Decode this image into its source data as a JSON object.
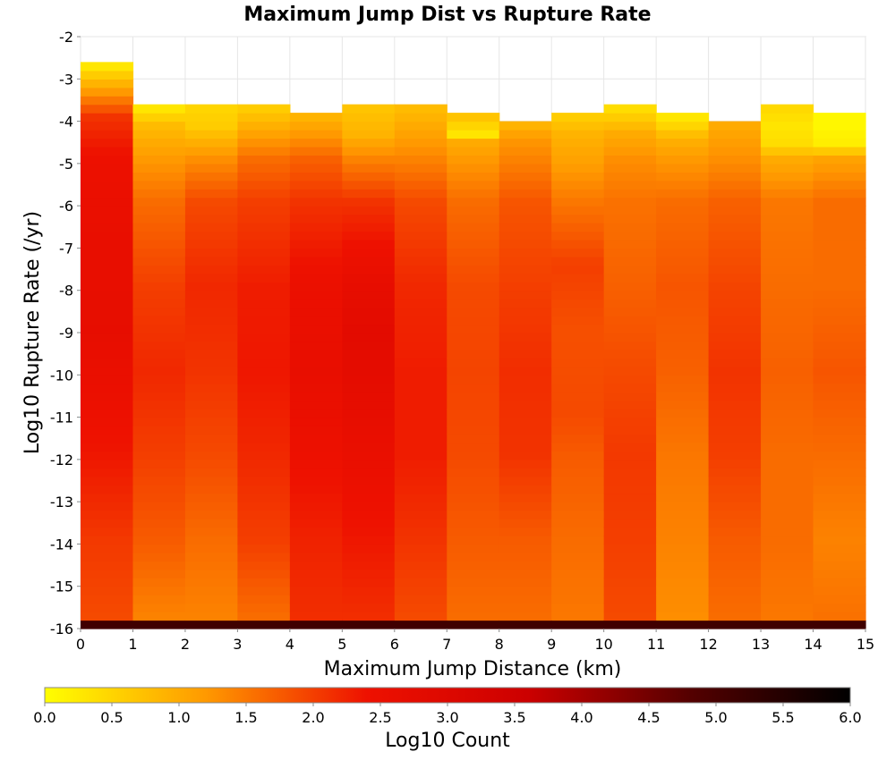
{
  "chart_data": {
    "type": "heatmap",
    "title": "Maximum Jump Dist vs Rupture Rate",
    "xlabel": "Maximum Jump Distance (km)",
    "ylabel": "Log10 Rupture Rate (/yr)",
    "xlim": [
      0,
      15
    ],
    "ylim": [
      -16,
      -2
    ],
    "xticks": [
      0,
      1,
      2,
      3,
      4,
      5,
      6,
      7,
      8,
      9,
      10,
      11,
      12,
      13,
      14,
      15
    ],
    "yticks": [
      -2,
      -3,
      -4,
      -5,
      -6,
      -7,
      -8,
      -9,
      -10,
      -11,
      -12,
      -13,
      -14,
      -15,
      -16
    ],
    "x_bin_width": 1,
    "y_bin_width": 0.2,
    "y_bin_start": -16,
    "colorbar": {
      "label": "Log10 Count",
      "range": [
        0,
        6
      ],
      "ticks": [
        "0.0",
        "0.5",
        "1.0",
        "1.5",
        "2.0",
        "2.5",
        "3.0",
        "3.5",
        "4.0",
        "4.5",
        "5.0",
        "5.5",
        "6.0"
      ],
      "colors": [
        "#ffff00",
        "#ff9900",
        "#ee1100",
        "#cc0000",
        "#550000",
        "#000000"
      ]
    },
    "columns": [
      {
        "x": 0,
        "top": -2.7,
        "anchors": [
          [
            -16,
            5.1
          ],
          [
            -15.8,
            1.9
          ],
          [
            -14,
            2.05
          ],
          [
            -12,
            2.35
          ],
          [
            -10,
            2.55
          ],
          [
            -9,
            2.65
          ],
          [
            -7,
            2.6
          ],
          [
            -5,
            2.45
          ],
          [
            -4,
            2.1
          ],
          [
            -3.4,
            1.2
          ],
          [
            -3,
            0.6
          ],
          [
            -2.8,
            0.3
          ]
        ]
      },
      {
        "x": 1,
        "top": -3.6,
        "anchors": [
          [
            -16,
            5.1
          ],
          [
            -15.8,
            1.4
          ],
          [
            -14,
            1.75
          ],
          [
            -12,
            2.0
          ],
          [
            -10,
            2.2
          ],
          [
            -8,
            2.0
          ],
          [
            -6,
            1.6
          ],
          [
            -5,
            1.2
          ],
          [
            -4.2,
            0.8
          ],
          [
            -3.8,
            0.3
          ]
        ]
      },
      {
        "x": 2,
        "top": -3.6,
        "anchors": [
          [
            -16,
            5.1
          ],
          [
            -15.8,
            1.4
          ],
          [
            -14,
            1.6
          ],
          [
            -12,
            1.9
          ],
          [
            -10,
            2.1
          ],
          [
            -8,
            2.2
          ],
          [
            -6,
            1.9
          ],
          [
            -5,
            1.3
          ],
          [
            -4.2,
            0.6
          ],
          [
            -3.8,
            0.5
          ]
        ]
      },
      {
        "x": 3,
        "top": -3.6,
        "anchors": [
          [
            -16,
            5.1
          ],
          [
            -15.8,
            1.6
          ],
          [
            -14,
            2.0
          ],
          [
            -12,
            2.2
          ],
          [
            -10,
            2.35
          ],
          [
            -8,
            2.3
          ],
          [
            -6,
            2.0
          ],
          [
            -5,
            1.6
          ],
          [
            -4.4,
            1.1
          ],
          [
            -3.8,
            0.6
          ]
        ]
      },
      {
        "x": 4,
        "top": -3.8,
        "anchors": [
          [
            -16,
            5.1
          ],
          [
            -15.8,
            2.15
          ],
          [
            -14,
            2.25
          ],
          [
            -12,
            2.45
          ],
          [
            -10,
            2.6
          ],
          [
            -8,
            2.5
          ],
          [
            -6,
            2.1
          ],
          [
            -5,
            1.7
          ],
          [
            -4.4,
            1.2
          ],
          [
            -4,
            0.9
          ]
        ]
      },
      {
        "x": 5,
        "top": -3.6,
        "anchors": [
          [
            -16,
            5.1
          ],
          [
            -15.8,
            2.15
          ],
          [
            -14,
            2.35
          ],
          [
            -12,
            2.55
          ],
          [
            -10,
            2.75
          ],
          [
            -9,
            2.8
          ],
          [
            -8,
            2.65
          ],
          [
            -7,
            2.4
          ],
          [
            -6,
            2.1
          ],
          [
            -5,
            1.4
          ],
          [
            -4.4,
            0.9
          ],
          [
            -3.8,
            0.7
          ]
        ]
      },
      {
        "x": 6,
        "top": -3.6,
        "anchors": [
          [
            -16,
            5.1
          ],
          [
            -15.8,
            1.9
          ],
          [
            -14,
            2.1
          ],
          [
            -12,
            2.3
          ],
          [
            -10,
            2.3
          ],
          [
            -8,
            2.2
          ],
          [
            -6,
            1.9
          ],
          [
            -5,
            1.4
          ],
          [
            -4.4,
            1.1
          ],
          [
            -3.8,
            0.8
          ]
        ]
      },
      {
        "x": 7,
        "top": -3.8,
        "anchors": [
          [
            -16,
            5.1
          ],
          [
            -15.8,
            1.6
          ],
          [
            -14,
            1.75
          ],
          [
            -12,
            1.9
          ],
          [
            -10,
            1.95
          ],
          [
            -8,
            1.9
          ],
          [
            -6,
            1.6
          ],
          [
            -5,
            1.2
          ],
          [
            -4.6,
            1.0
          ],
          [
            -4.4,
            0.3
          ],
          [
            -4,
            0.7
          ]
        ]
      },
      {
        "x": 8,
        "top": -4.1,
        "anchors": [
          [
            -16,
            5.1
          ],
          [
            -15.8,
            1.6
          ],
          [
            -14,
            1.75
          ],
          [
            -12,
            2.1
          ],
          [
            -10,
            2.15
          ],
          [
            -8,
            2.0
          ],
          [
            -6,
            1.8
          ],
          [
            -5,
            1.4
          ],
          [
            -4.5,
            1.2
          ],
          [
            -4.2,
            0.9
          ]
        ]
      },
      {
        "x": 9,
        "top": -3.8,
        "anchors": [
          [
            -16,
            5.1
          ],
          [
            -15.8,
            1.5
          ],
          [
            -14,
            1.6
          ],
          [
            -12,
            1.75
          ],
          [
            -11,
            1.9
          ],
          [
            -9,
            1.85
          ],
          [
            -7.5,
            2.0
          ],
          [
            -6,
            1.5
          ],
          [
            -5,
            1.1
          ],
          [
            -4.4,
            0.9
          ],
          [
            -4,
            0.6
          ]
        ]
      },
      {
        "x": 10,
        "top": -3.6,
        "anchors": [
          [
            -16,
            5.1
          ],
          [
            -15.8,
            1.9
          ],
          [
            -14,
            2.0
          ],
          [
            -12,
            2.05
          ],
          [
            -10,
            1.9
          ],
          [
            -8,
            1.7
          ],
          [
            -6,
            1.55
          ],
          [
            -5,
            1.3
          ],
          [
            -4.4,
            1.0
          ],
          [
            -3.8,
            0.4
          ]
        ]
      },
      {
        "x": 11,
        "top": -3.8,
        "anchors": [
          [
            -16,
            5.1
          ],
          [
            -15.8,
            1.3
          ],
          [
            -14,
            1.4
          ],
          [
            -12,
            1.5
          ],
          [
            -10,
            1.7
          ],
          [
            -8,
            1.8
          ],
          [
            -6,
            1.6
          ],
          [
            -5,
            1.2
          ],
          [
            -4.5,
            0.9
          ],
          [
            -4.2,
            0.5
          ],
          [
            -4,
            0.3
          ]
        ]
      },
      {
        "x": 12,
        "top": -4.1,
        "anchors": [
          [
            -16,
            5.1
          ],
          [
            -15.8,
            1.6
          ],
          [
            -14,
            1.75
          ],
          [
            -12,
            2.0
          ],
          [
            -10,
            2.1
          ],
          [
            -8,
            1.95
          ],
          [
            -6,
            1.7
          ],
          [
            -5,
            1.3
          ],
          [
            -4.2,
            1.0
          ]
        ]
      },
      {
        "x": 13,
        "top": -3.6,
        "anchors": [
          [
            -16,
            5.1
          ],
          [
            -15.8,
            1.5
          ],
          [
            -14,
            1.6
          ],
          [
            -12,
            1.6
          ],
          [
            -10,
            1.7
          ],
          [
            -8,
            1.6
          ],
          [
            -6,
            1.5
          ],
          [
            -5,
            1.0
          ],
          [
            -4.6,
            0.4
          ],
          [
            -4.2,
            0.3
          ],
          [
            -3.8,
            0.45
          ]
        ]
      },
      {
        "x": 14,
        "top": -3.8,
        "anchors": [
          [
            -16,
            5.1
          ],
          [
            -15.8,
            1.55
          ],
          [
            -14,
            1.4
          ],
          [
            -12,
            1.6
          ],
          [
            -10,
            1.8
          ],
          [
            -8,
            1.6
          ],
          [
            -6,
            1.6
          ],
          [
            -5,
            1.1
          ],
          [
            -4.6,
            0.2
          ],
          [
            -4.2,
            0.1
          ]
        ]
      }
    ]
  }
}
